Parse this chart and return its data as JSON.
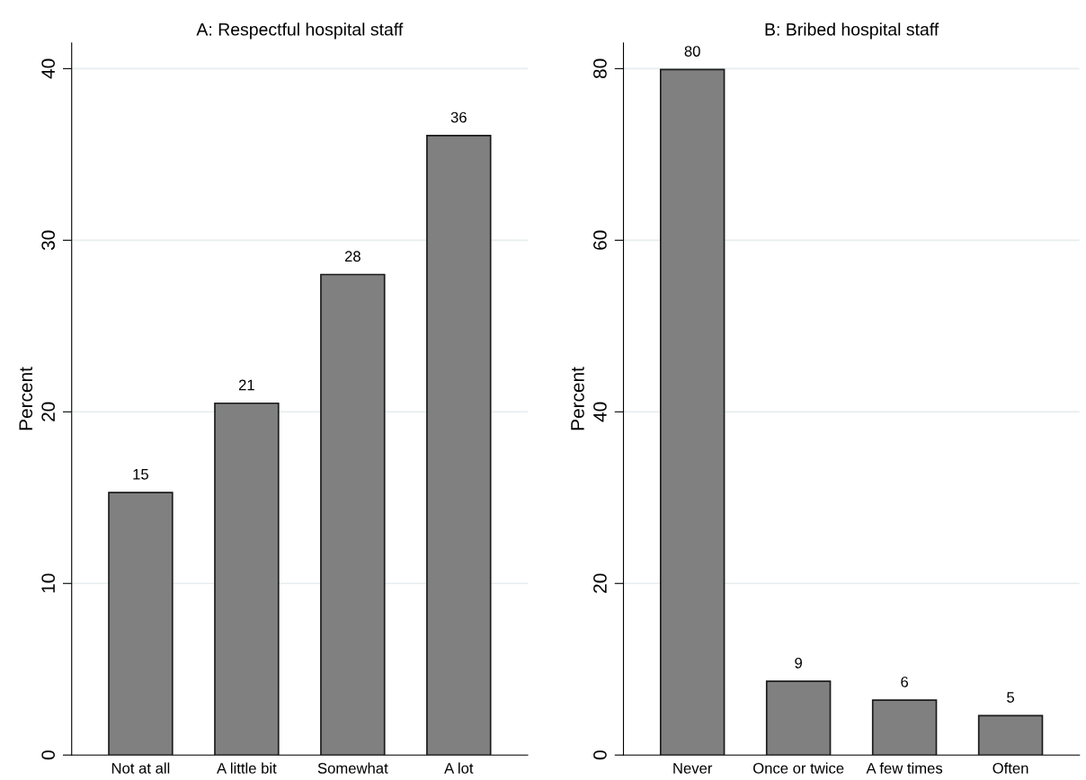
{
  "chart_data": [
    {
      "type": "bar",
      "title": "A: Respectful hospital staff",
      "ylabel": "Percent",
      "categories": [
        "Not at all",
        "A little bit",
        "Somewhat",
        "A lot"
      ],
      "values": [
        15.3,
        20.5,
        28.0,
        36.1
      ],
      "value_labels": [
        "15",
        "21",
        "28",
        "36"
      ],
      "color": "#808080",
      "ylim": [
        0,
        41.5
      ],
      "yticks": [
        0,
        10,
        20,
        30,
        40
      ],
      "grid": "y"
    },
    {
      "type": "bar",
      "title": "B: Bribed hospital staff",
      "ylabel": "Percent",
      "categories": [
        "Never",
        "Once or twice",
        "A few times",
        "Often"
      ],
      "values": [
        79.9,
        8.6,
        6.4,
        4.6
      ],
      "value_labels": [
        "80",
        "9",
        "6",
        "5"
      ],
      "color": "#808080",
      "ylim": [
        0,
        83
      ],
      "yticks": [
        0,
        20,
        40,
        60,
        80
      ],
      "grid": "y"
    }
  ]
}
